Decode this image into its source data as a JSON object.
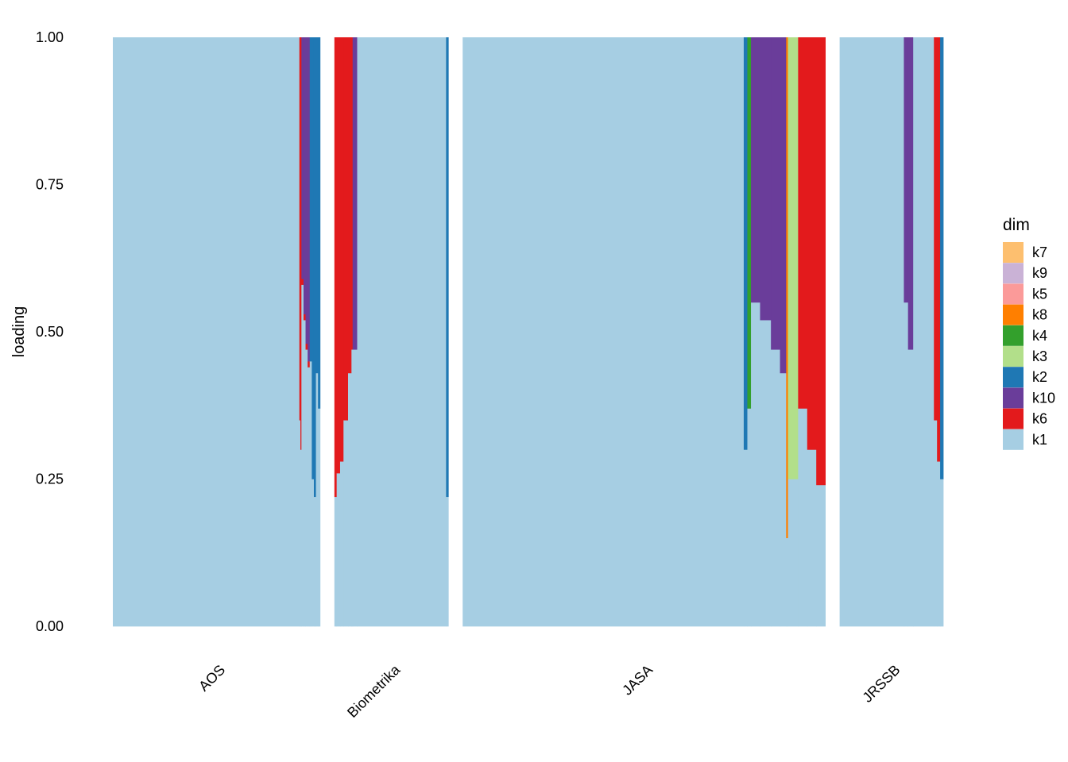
{
  "chart_data": {
    "type": "area",
    "title": "",
    "xlabel": "",
    "ylabel": "loading",
    "ylim": [
      0,
      1
    ],
    "yticks": [
      "0.00",
      "0.25",
      "0.50",
      "0.75",
      "1.00"
    ],
    "grid": false,
    "legend": {
      "title": "dim",
      "placement": "right",
      "entries": [
        {
          "name": "k7",
          "color": "#FDBF6F"
        },
        {
          "name": "k9",
          "color": "#CAB2D6"
        },
        {
          "name": "k5",
          "color": "#FB9A99"
        },
        {
          "name": "k8",
          "color": "#FF7F00"
        },
        {
          "name": "k4",
          "color": "#33A02C"
        },
        {
          "name": "k3",
          "color": "#B2DF8A"
        },
        {
          "name": "k2",
          "color": "#1F78B4"
        },
        {
          "name": "k10",
          "color": "#6A3D9A"
        },
        {
          "name": "k6",
          "color": "#E31A1C"
        },
        {
          "name": "k1",
          "color": "#A6CEE3"
        }
      ]
    },
    "facets": [
      {
        "name": "AOS",
        "n_items": 200,
        "items": [
          {
            "from": 0.0,
            "to": 0.9,
            "k1": 1.0,
            "k6": 0.0,
            "k10": 0.0,
            "k2": 0.0
          },
          {
            "from": 0.9,
            "to": 0.905,
            "k1": 0.35,
            "k6": 0.65,
            "k10": 0.0,
            "k2": 0.0
          },
          {
            "from": 0.905,
            "to": 0.91,
            "k1": 0.3,
            "k6": 0.7,
            "k10": 0.0,
            "k2": 0.0
          },
          {
            "from": 0.91,
            "to": 0.92,
            "k1": 0.58,
            "k6": 0.01,
            "k10": 0.41,
            "k2": 0.0
          },
          {
            "from": 0.92,
            "to": 0.93,
            "k1": 0.52,
            "k6": 0.01,
            "k10": 0.47,
            "k2": 0.0
          },
          {
            "from": 0.93,
            "to": 0.94,
            "k1": 0.47,
            "k6": 0.01,
            "k10": 0.52,
            "k2": 0.0
          },
          {
            "from": 0.94,
            "to": 0.95,
            "k1": 0.44,
            "k6": 0.01,
            "k10": 0.55,
            "k2": 0.0
          },
          {
            "from": 0.95,
            "to": 0.96,
            "k1": 0.45,
            "k6": 0.0,
            "k10": 0.0,
            "k2": 0.55
          },
          {
            "from": 0.96,
            "to": 0.97,
            "k1": 0.25,
            "k6": 0.0,
            "k10": 0.0,
            "k2": 0.75
          },
          {
            "from": 0.97,
            "to": 0.98,
            "k1": 0.22,
            "k6": 0.0,
            "k10": 0.0,
            "k2": 0.78
          },
          {
            "from": 0.98,
            "to": 0.99,
            "k1": 0.43,
            "k6": 0.0,
            "k10": 0.0,
            "k2": 0.57
          },
          {
            "from": 0.99,
            "to": 1.0,
            "k1": 0.37,
            "k6": 0.0,
            "k10": 0.0,
            "k2": 0.63
          }
        ]
      },
      {
        "name": "Biometrika",
        "n_items": 110,
        "items": [
          {
            "from": 0.0,
            "to": 0.02,
            "k1": 0.22,
            "k6": 0.78,
            "k10": 0.0,
            "k2": 0.0
          },
          {
            "from": 0.02,
            "to": 0.05,
            "k1": 0.26,
            "k6": 0.74,
            "k10": 0.0,
            "k2": 0.0
          },
          {
            "from": 0.05,
            "to": 0.08,
            "k1": 0.28,
            "k6": 0.72,
            "k10": 0.0,
            "k2": 0.0
          },
          {
            "from": 0.08,
            "to": 0.12,
            "k1": 0.35,
            "k6": 0.65,
            "k10": 0.0,
            "k2": 0.0
          },
          {
            "from": 0.12,
            "to": 0.15,
            "k1": 0.43,
            "k6": 0.57,
            "k10": 0.0,
            "k2": 0.0
          },
          {
            "from": 0.15,
            "to": 0.16,
            "k1": 0.47,
            "k6": 0.53,
            "k10": 0.0,
            "k2": 0.0
          },
          {
            "from": 0.16,
            "to": 0.2,
            "k1": 0.47,
            "k6": 0.0,
            "k10": 0.53,
            "k2": 0.0
          },
          {
            "from": 0.2,
            "to": 0.98,
            "k1": 1.0,
            "k6": 0.0,
            "k10": 0.0,
            "k2": 0.0
          },
          {
            "from": 0.98,
            "to": 1.0,
            "k1": 0.22,
            "k6": 0.0,
            "k10": 0.0,
            "k2": 0.78
          }
        ]
      },
      {
        "name": "JASA",
        "n_items": 350,
        "items": [
          {
            "from": 0.0,
            "to": 0.775,
            "k1": 1.0,
            "k2": 0.0,
            "k4": 0.0,
            "k10": 0.0,
            "k8": 0.0,
            "k3": 0.0,
            "k6": 0.0
          },
          {
            "from": 0.775,
            "to": 0.785,
            "k1": 0.3,
            "k2": 0.7,
            "k4": 0.0,
            "k10": 0.0,
            "k8": 0.0,
            "k3": 0.0,
            "k6": 0.0
          },
          {
            "from": 0.785,
            "to": 0.795,
            "k1": 0.37,
            "k2": 0.0,
            "k4": 0.63,
            "k10": 0.0,
            "k8": 0.0,
            "k3": 0.0,
            "k6": 0.0
          },
          {
            "from": 0.795,
            "to": 0.82,
            "k1": 0.55,
            "k2": 0.0,
            "k4": 0.0,
            "k10": 0.45,
            "k8": 0.0,
            "k3": 0.0,
            "k6": 0.0
          },
          {
            "from": 0.82,
            "to": 0.85,
            "k1": 0.52,
            "k2": 0.0,
            "k4": 0.0,
            "k10": 0.48,
            "k8": 0.0,
            "k3": 0.0,
            "k6": 0.0
          },
          {
            "from": 0.85,
            "to": 0.875,
            "k1": 0.47,
            "k2": 0.0,
            "k4": 0.0,
            "k10": 0.53,
            "k8": 0.0,
            "k3": 0.0,
            "k6": 0.0
          },
          {
            "from": 0.875,
            "to": 0.892,
            "k1": 0.43,
            "k2": 0.0,
            "k4": 0.0,
            "k10": 0.57,
            "k8": 0.0,
            "k3": 0.0,
            "k6": 0.0
          },
          {
            "from": 0.892,
            "to": 0.897,
            "k1": 0.15,
            "k2": 0.0,
            "k4": 0.0,
            "k10": 0.0,
            "k8": 0.85,
            "k3": 0.0,
            "k6": 0.0
          },
          {
            "from": 0.897,
            "to": 0.925,
            "k1": 0.25,
            "k2": 0.0,
            "k4": 0.0,
            "k10": 0.0,
            "k8": 0.0,
            "k3": 0.75,
            "k6": 0.0
          },
          {
            "from": 0.925,
            "to": 0.95,
            "k1": 0.37,
            "k2": 0.0,
            "k4": 0.0,
            "k10": 0.0,
            "k8": 0.0,
            "k3": 0.0,
            "k6": 0.63
          },
          {
            "from": 0.95,
            "to": 0.975,
            "k1": 0.3,
            "k2": 0.0,
            "k4": 0.0,
            "k10": 0.0,
            "k8": 0.0,
            "k3": 0.0,
            "k6": 0.7
          },
          {
            "from": 0.975,
            "to": 1.0,
            "k1": 0.24,
            "k2": 0.0,
            "k4": 0.0,
            "k10": 0.0,
            "k8": 0.0,
            "k3": 0.0,
            "k6": 0.76
          }
        ]
      },
      {
        "name": "JRSSB",
        "n_items": 100,
        "items": [
          {
            "from": 0.0,
            "to": 0.62,
            "k1": 1.0,
            "k10": 0.0,
            "k6": 0.0,
            "k2": 0.0
          },
          {
            "from": 0.62,
            "to": 0.66,
            "k1": 0.55,
            "k10": 0.45,
            "k6": 0.0,
            "k2": 0.0
          },
          {
            "from": 0.66,
            "to": 0.71,
            "k1": 0.47,
            "k10": 0.53,
            "k6": 0.0,
            "k2": 0.0
          },
          {
            "from": 0.71,
            "to": 0.91,
            "k1": 1.0,
            "k10": 0.0,
            "k6": 0.0,
            "k2": 0.0
          },
          {
            "from": 0.91,
            "to": 0.94,
            "k1": 0.35,
            "k10": 0.0,
            "k6": 0.65,
            "k2": 0.0
          },
          {
            "from": 0.94,
            "to": 0.97,
            "k1": 0.28,
            "k10": 0.0,
            "k6": 0.72,
            "k2": 0.0
          },
          {
            "from": 0.97,
            "to": 1.0,
            "k1": 0.25,
            "k10": 0.0,
            "k6": 0.0,
            "k2": 0.75
          }
        ]
      }
    ]
  }
}
